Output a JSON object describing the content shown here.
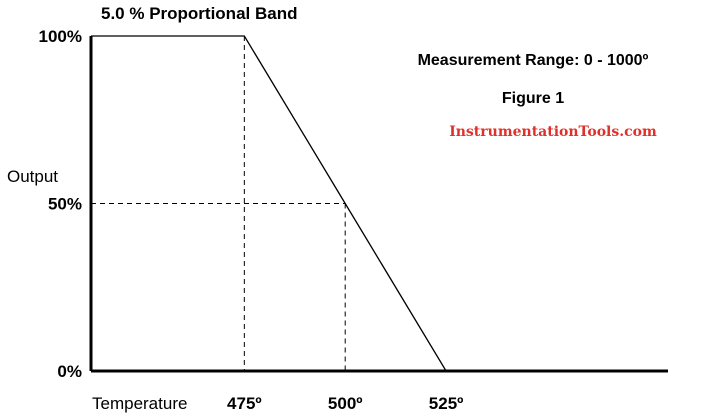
{
  "chart_data": {
    "type": "line",
    "title": "5.0 % Proportional Band",
    "subtitle": "Measurement Range: 0 - 1000º",
    "figure_label": "Figure 1",
    "xlabel": "Temperature",
    "ylabel": "Output",
    "x_tick_labels": [
      "475º",
      "500º",
      "525º"
    ],
    "y_tick_labels": [
      "100%",
      "50%",
      "0%"
    ],
    "xlim": [
      437,
      580
    ],
    "ylim": [
      0,
      100
    ],
    "grid": false,
    "series": [
      {
        "x": [
          437,
          475,
          500,
          525,
          580
        ],
        "y": [
          100,
          100,
          50,
          0,
          0
        ]
      }
    ],
    "reference_lines": [
      {
        "x": 475,
        "y": 100
      },
      {
        "x": 500,
        "y": 50
      }
    ]
  },
  "watermark": "InstrumentationTools.com",
  "colors": {
    "line": "#000000",
    "watermark": "#e0302a"
  }
}
